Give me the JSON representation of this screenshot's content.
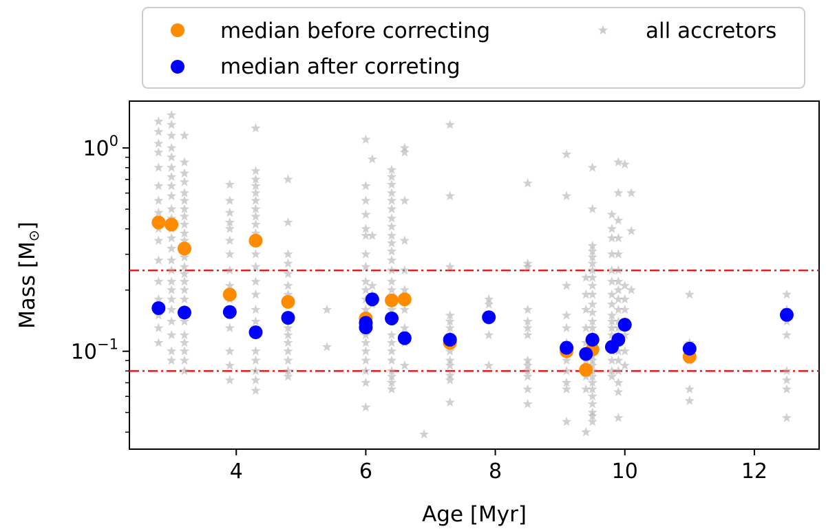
{
  "chart_data": {
    "type": "scatter",
    "xlabel": "Age [Myr]",
    "ylabel": "Mass [M",
    "ylabel_symbol": "⊙",
    "ylabel_close": "]",
    "xlim": [
      2.35,
      13.0
    ],
    "ylim": [
      0.033,
      1.7
    ],
    "yscale": "log",
    "x_ticks": [
      4,
      6,
      8,
      10,
      12
    ],
    "y_major_ticks": [
      {
        "value": 1.0,
        "base": "10",
        "exp": "0"
      },
      {
        "value": 0.1,
        "base": "10",
        "exp": "−1"
      }
    ],
    "hlines": [
      {
        "y": 0.25,
        "color": "#e41a1c",
        "style": "dashdot"
      },
      {
        "y": 0.08,
        "color": "#e41a1c",
        "style": "dashdot"
      }
    ],
    "legend": {
      "location": "top (above plot)",
      "entries": [
        {
          "label": "median before correcting",
          "marker": "circle",
          "color": "#ff8c00"
        },
        {
          "label": "all accretors",
          "marker": "star",
          "color": "#aaaaaa"
        },
        {
          "label": "median after correting",
          "marker": "circle",
          "color": "#0000ff"
        }
      ]
    },
    "series": [
      {
        "name": "median before correcting",
        "color": "#ff8c00",
        "points": [
          [
            2.8,
            0.43
          ],
          [
            3.0,
            0.42
          ],
          [
            3.2,
            0.32
          ],
          [
            3.9,
            0.19
          ],
          [
            4.3,
            0.35
          ],
          [
            4.8,
            0.175
          ],
          [
            6.0,
            0.145
          ],
          [
            6.4,
            0.178
          ],
          [
            6.6,
            0.18
          ],
          [
            7.3,
            0.11
          ],
          [
            9.1,
            0.1
          ],
          [
            9.4,
            0.081
          ],
          [
            9.5,
            0.102
          ],
          [
            11.0,
            0.094
          ]
        ]
      },
      {
        "name": "median after correting",
        "color": "#0000ff",
        "points": [
          [
            2.8,
            0.163
          ],
          [
            3.2,
            0.155
          ],
          [
            3.9,
            0.156
          ],
          [
            4.3,
            0.124
          ],
          [
            4.8,
            0.146
          ],
          [
            6.0,
            0.138
          ],
          [
            6.0,
            0.131
          ],
          [
            6.1,
            0.18
          ],
          [
            6.4,
            0.145
          ],
          [
            6.6,
            0.116
          ],
          [
            7.3,
            0.114
          ],
          [
            7.9,
            0.147
          ],
          [
            9.1,
            0.104
          ],
          [
            9.4,
            0.097
          ],
          [
            9.5,
            0.114
          ],
          [
            9.8,
            0.105
          ],
          [
            9.9,
            0.114
          ],
          [
            10.0,
            0.135
          ],
          [
            11.0,
            0.103
          ],
          [
            12.5,
            0.151
          ]
        ]
      },
      {
        "name": "all accretors",
        "color": "#aaaaaa",
        "columns": [
          {
            "x": 2.8,
            "values": [
              1.35,
              1.2,
              1.05,
              0.95,
              0.8,
              0.65,
              0.55,
              0.48,
              0.4,
              0.35,
              0.28,
              0.22,
              0.18,
              0.15,
              0.13,
              0.11
            ]
          },
          {
            "x": 3.0,
            "values": [
              1.45,
              1.3,
              1.15,
              1.0,
              0.9,
              0.8,
              0.72,
              0.65,
              0.58,
              0.5,
              0.45,
              0.4,
              0.36,
              0.32,
              0.28,
              0.25,
              0.22,
              0.2,
              0.18,
              0.16,
              0.14,
              0.12,
              0.1,
              0.09
            ]
          },
          {
            "x": 3.2,
            "values": [
              1.15,
              0.85,
              0.75,
              0.68,
              0.6,
              0.55,
              0.5,
              0.46,
              0.42,
              0.38,
              0.35,
              0.32,
              0.29,
              0.26,
              0.24,
              0.22,
              0.2,
              0.18,
              0.16,
              0.14,
              0.12,
              0.11,
              0.1,
              0.09,
              0.08
            ]
          },
          {
            "x": 3.9,
            "values": [
              0.66,
              0.55,
              0.48,
              0.43,
              0.4,
              0.35,
              0.3,
              0.25,
              0.21,
              0.18,
              0.15,
              0.13,
              0.1,
              0.085,
              0.072
            ]
          },
          {
            "x": 4.3,
            "values": [
              1.25,
              0.77,
              0.7,
              0.65,
              0.6,
              0.55,
              0.5,
              0.46,
              0.42,
              0.38,
              0.34,
              0.3,
              0.26,
              0.22,
              0.19,
              0.16,
              0.14,
              0.12,
              0.1,
              0.09,
              0.08,
              0.072,
              0.064
            ]
          },
          {
            "x": 4.8,
            "values": [
              0.7,
              0.43,
              0.3,
              0.27,
              0.24,
              0.21,
              0.19,
              0.17,
              0.15,
              0.13,
              0.12,
              0.11,
              0.1,
              0.09,
              0.08,
              0.075
            ]
          },
          {
            "x": 5.4,
            "values": [
              0.16,
              0.105
            ]
          },
          {
            "x": 6.0,
            "values": [
              1.1,
              0.65,
              0.55,
              0.47,
              0.4,
              0.37,
              0.3,
              0.26,
              0.22,
              0.2,
              0.18,
              0.16,
              0.14,
              0.12,
              0.11,
              0.1,
              0.09,
              0.08,
              0.07,
              0.053
            ]
          },
          {
            "x": 6.1,
            "values": [
              0.88,
              0.37,
              0.21,
              0.19,
              0.17
            ]
          },
          {
            "x": 6.4,
            "values": [
              0.78,
              0.72,
              0.66,
              0.6,
              0.55,
              0.5,
              0.45,
              0.41,
              0.37,
              0.34,
              0.31,
              0.28,
              0.25,
              0.22,
              0.2,
              0.18,
              0.16,
              0.14,
              0.12,
              0.11,
              0.1,
              0.09,
              0.08,
              0.075,
              0.07,
              0.065
            ]
          },
          {
            "x": 6.6,
            "values": [
              1.0,
              0.95,
              0.55,
              0.35,
              0.25,
              0.2,
              0.16,
              0.13,
              0.11,
              0.085
            ]
          },
          {
            "x": 6.9,
            "values": [
              0.039
            ]
          },
          {
            "x": 7.3,
            "values": [
              1.3,
              0.58,
              0.26,
              0.15,
              0.14,
              0.13,
              0.12,
              0.11,
              0.1,
              0.09,
              0.085,
              0.076,
              0.072,
              0.056
            ]
          },
          {
            "x": 7.9,
            "values": [
              0.18,
              0.17,
              0.12,
              0.085
            ]
          },
          {
            "x": 8.5,
            "values": [
              0.67,
              0.27,
              0.26,
              0.16,
              0.14,
              0.13,
              0.12,
              0.09,
              0.085,
              0.08,
              0.075,
              0.065,
              0.055
            ]
          },
          {
            "x": 9.1,
            "values": [
              0.93,
              0.58,
              0.21,
              0.15,
              0.13,
              0.11,
              0.1,
              0.09,
              0.08,
              0.07,
              0.065,
              0.045
            ]
          },
          {
            "x": 9.4,
            "values": [
              0.23,
              0.19,
              0.16,
              0.13,
              0.11,
              0.09,
              0.075,
              0.065,
              0.04
            ]
          },
          {
            "x": 9.5,
            "values": [
              0.8,
              0.5,
              0.33,
              0.31,
              0.29,
              0.27,
              0.25,
              0.23,
              0.21,
              0.19,
              0.17,
              0.155,
              0.14,
              0.13,
              0.12,
              0.11,
              0.1,
              0.095,
              0.09,
              0.085,
              0.08,
              0.075,
              0.07,
              0.065,
              0.06,
              0.055,
              0.05,
              0.048,
              0.045
            ]
          },
          {
            "x": 9.8,
            "values": [
              0.47,
              0.4,
              0.36,
              0.3,
              0.25,
              0.22,
              0.19,
              0.17,
              0.15,
              0.14,
              0.13,
              0.12,
              0.11,
              0.1,
              0.09,
              0.08,
              0.075
            ]
          },
          {
            "x": 9.9,
            "values": [
              0.85,
              0.6,
              0.44,
              0.36,
              0.3,
              0.25,
              0.22,
              0.2,
              0.18,
              0.16,
              0.14,
              0.13,
              0.12,
              0.11,
              0.1,
              0.09,
              0.08,
              0.07,
              0.063,
              0.047
            ]
          },
          {
            "x": 10.0,
            "values": [
              0.83,
              0.21,
              0.18,
              0.16,
              0.14,
              0.12,
              0.1,
              0.085
            ]
          },
          {
            "x": 10.1,
            "values": [
              0.6,
              0.39,
              0.2
            ]
          },
          {
            "x": 11.0,
            "values": [
              0.19,
              0.11,
              0.1,
              0.09,
              0.065,
              0.057
            ]
          },
          {
            "x": 12.5,
            "values": [
              0.19,
              0.16,
              0.14,
              0.12,
              0.08,
              0.072,
              0.065,
              0.047
            ]
          }
        ]
      }
    ]
  }
}
